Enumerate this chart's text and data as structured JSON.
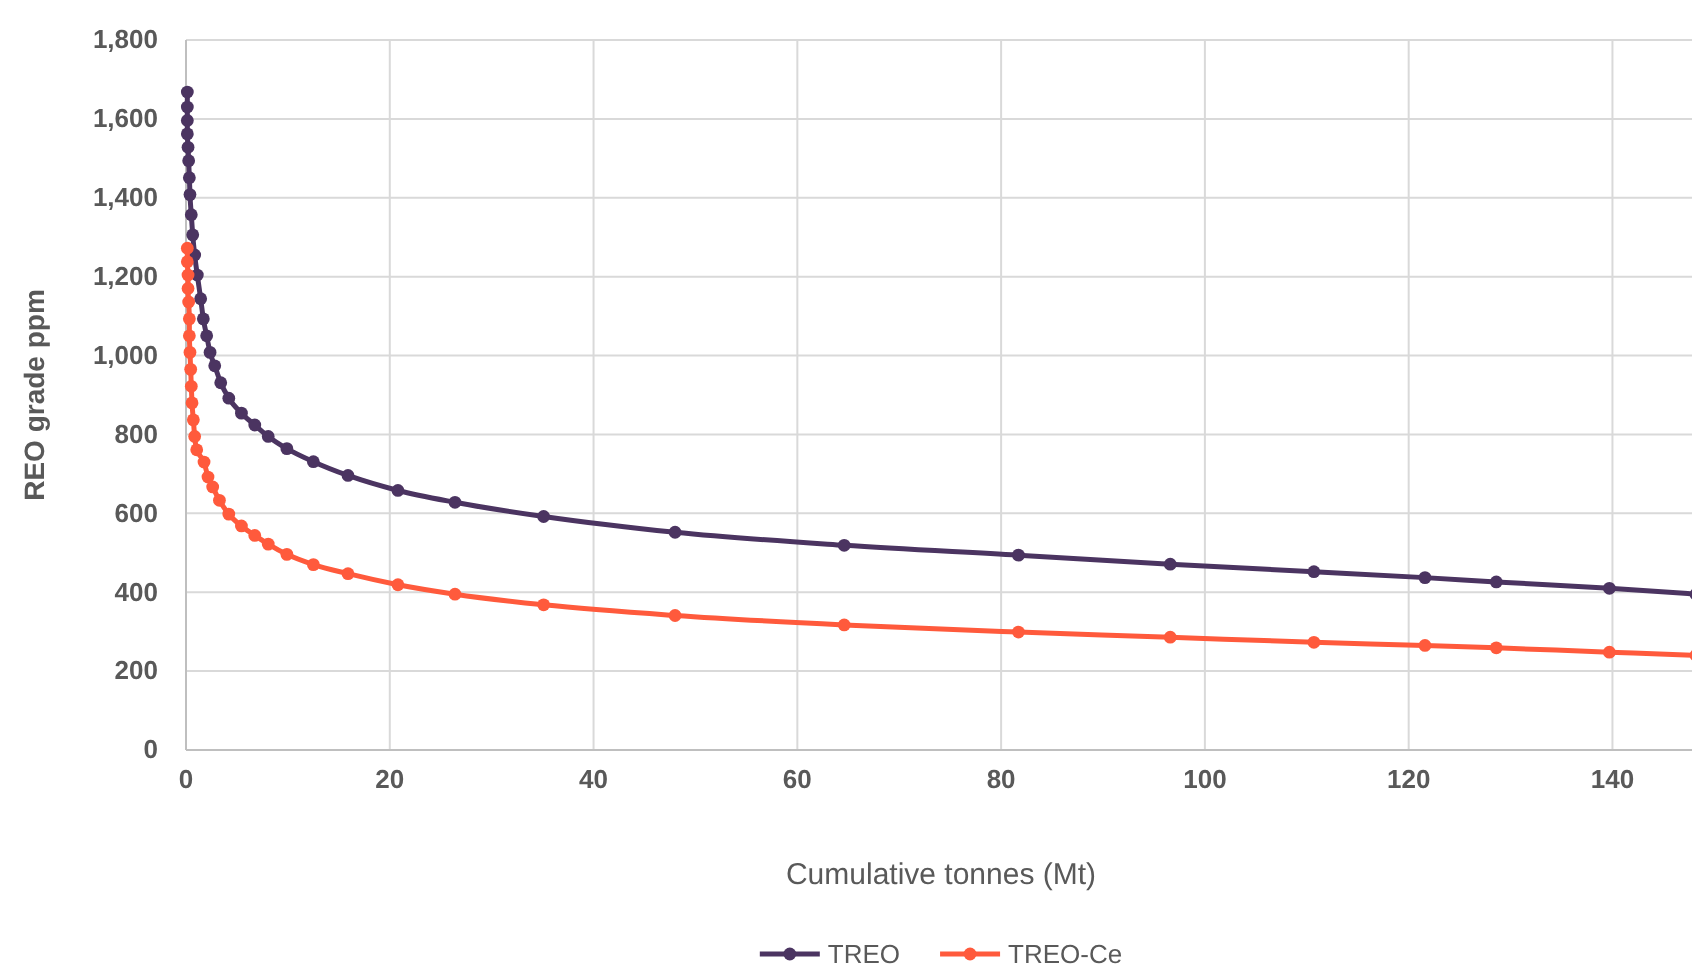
{
  "chart_data": {
    "type": "line",
    "xlabel": "Cumulative tonnes (Mt)",
    "ylabel": "REO grade ppm",
    "xlim": [
      0,
      148.2
    ],
    "xticks": [
      0,
      20,
      40,
      60,
      80,
      100,
      120,
      140
    ],
    "ylim": [
      0,
      1800
    ],
    "yticks": [
      {
        "value": 0,
        "label": "0"
      },
      {
        "value": 200,
        "label": "200"
      },
      {
        "value": 400,
        "label": "400"
      },
      {
        "value": 600,
        "label": "600"
      },
      {
        "value": 800,
        "label": "800"
      },
      {
        "value": 1000,
        "label": "1,000"
      },
      {
        "value": 1200,
        "label": "1,200"
      },
      {
        "value": 1400,
        "label": "1,400"
      },
      {
        "value": 1600,
        "label": "1,600"
      },
      {
        "value": 1800,
        "label": "1,800"
      }
    ],
    "grid": true,
    "legend": "bottom",
    "marker": "circle",
    "line_style": "solid",
    "series": [
      {
        "name": "TREO",
        "color": "#4b3461",
        "x": [
          0.13,
          0.13,
          0.13,
          0.13,
          0.2,
          0.26,
          0.33,
          0.39,
          0.52,
          0.66,
          0.85,
          1.11,
          1.44,
          1.7,
          2.03,
          2.36,
          2.82,
          3.41,
          4.2,
          5.44,
          6.75,
          8.07,
          9.9,
          12.5,
          15.9,
          20.8,
          26.4,
          35.1,
          48.0,
          64.6,
          81.7,
          96.6,
          110.7,
          121.6,
          128.6,
          139.7,
          148.2
        ],
        "values": [
          1668,
          1630,
          1596,
          1562,
          1528,
          1494,
          1451,
          1408,
          1357,
          1306,
          1255,
          1204,
          1144,
          1093,
          1050,
          1008,
          974,
          931,
          892,
          854,
          824,
          795,
          764,
          731,
          696,
          658,
          628,
          592,
          552,
          519,
          494,
          471,
          452,
          437,
          426,
          410,
          395
        ]
      },
      {
        "name": "TREO-Ce",
        "color": "#ff5a3c",
        "x": [
          0.13,
          0.13,
          0.2,
          0.2,
          0.26,
          0.33,
          0.33,
          0.39,
          0.46,
          0.52,
          0.59,
          0.72,
          0.85,
          1.05,
          1.77,
          2.16,
          2.62,
          3.28,
          4.2,
          5.44,
          6.75,
          8.07,
          9.9,
          12.5,
          15.9,
          20.8,
          26.4,
          35.1,
          48.0,
          64.6,
          81.7,
          96.6,
          110.7,
          121.6,
          128.6,
          139.7,
          148.2
        ],
        "values": [
          1272,
          1238,
          1204,
          1170,
          1136,
          1093,
          1050,
          1008,
          965,
          922,
          880,
          837,
          795,
          761,
          730,
          692,
          667,
          633,
          598,
          568,
          544,
          522,
          496,
          470,
          447,
          419,
          395,
          368,
          341,
          317,
          299,
          286,
          273,
          265,
          259,
          248,
          240
        ]
      }
    ]
  }
}
